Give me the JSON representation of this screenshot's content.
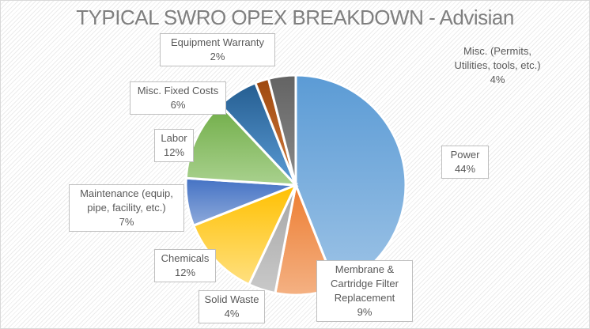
{
  "chart_data": {
    "type": "pie",
    "title": "TYPICAL SWRO OPEX BREAKDOWN - Advisian",
    "slices": [
      {
        "label": "Power",
        "value": 44,
        "pct_label": "44%",
        "color_top": "#5b9bd5",
        "color_bottom": "#9dc3e6"
      },
      {
        "label": "Membrane & Cartridge Filter Replacement",
        "value": 9,
        "pct_label": "9%",
        "color_top": "#ed7d31",
        "color_bottom": "#f4b183"
      },
      {
        "label": "Solid Waste",
        "value": 4,
        "pct_label": "4%",
        "color_top": "#a5a5a5",
        "color_bottom": "#c9c9c9"
      },
      {
        "label": "Chemicals",
        "value": 12,
        "pct_label": "12%",
        "color_top": "#ffc000",
        "color_bottom": "#ffe080"
      },
      {
        "label": "Maintenance (equip, pipe, facility, etc.)",
        "value": 7,
        "pct_label": "7%",
        "color_top": "#4472c4",
        "color_bottom": "#8eaadb"
      },
      {
        "label": "Labor",
        "value": 12,
        "pct_label": "12%",
        "color_top": "#70ad47",
        "color_bottom": "#a9d18e"
      },
      {
        "label": "Misc. Fixed Costs",
        "value": 6,
        "pct_label": "6%",
        "color_top": "#255e91",
        "color_bottom": "#5b9bd5"
      },
      {
        "label": "Equipment Warranty",
        "value": 2,
        "pct_label": "2%",
        "color_top": "#9e480e",
        "color_bottom": "#d27b3e"
      },
      {
        "label": "Misc. (Permits, Utilities, tools, etc.)",
        "value": 4,
        "pct_label": "4%",
        "color_top": "#636363",
        "color_bottom": "#8a8a8a"
      }
    ],
    "legend": "none",
    "data_labels": "callout boxes"
  }
}
